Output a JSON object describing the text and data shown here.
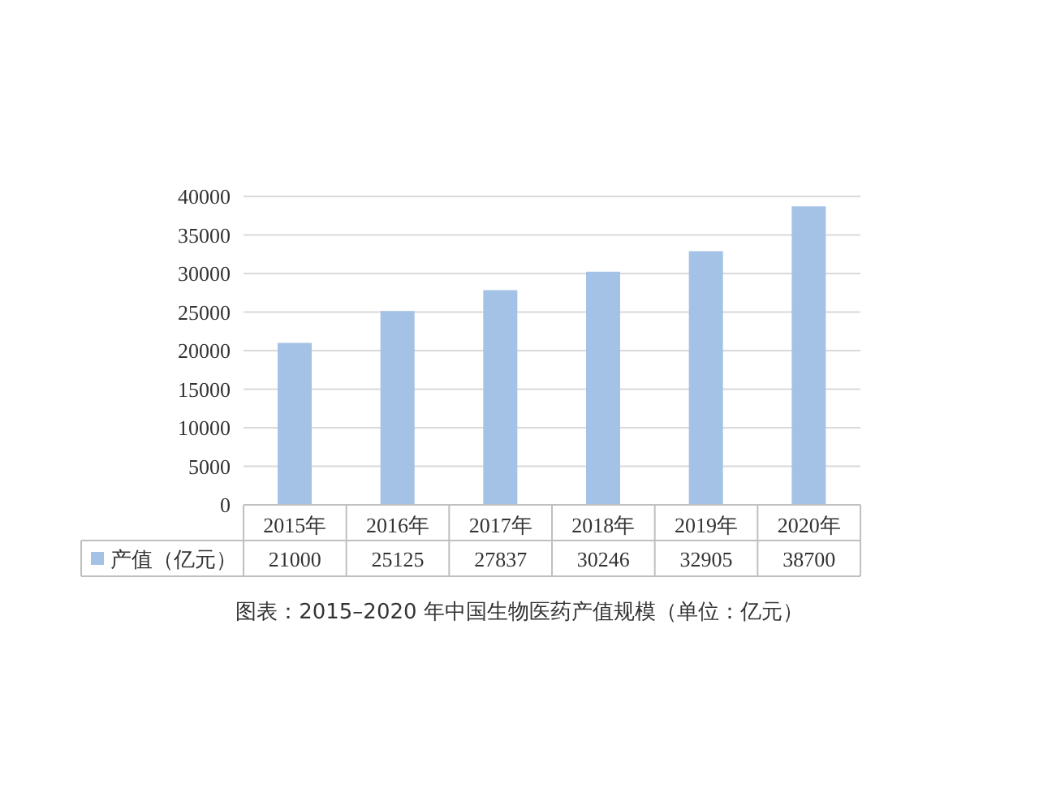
{
  "chart_data": {
    "type": "bar",
    "categories": [
      "2015年",
      "2016年",
      "2017年",
      "2018年",
      "2019年",
      "2020年"
    ],
    "series": [
      {
        "name": "产值（亿元）",
        "color": "#a4c2e6",
        "values": [
          21000,
          25125,
          27837,
          30246,
          32905,
          38700
        ]
      }
    ],
    "ylim": [
      0,
      40000
    ],
    "yticks": [
      0,
      5000,
      10000,
      15000,
      20000,
      25000,
      30000,
      35000,
      40000
    ],
    "grid": "y",
    "data_labels": true,
    "legend": "bottom",
    "annotations": [
      "图表：2015–2020 年中国生物医药产值规模（单位：亿元）"
    ]
  }
}
